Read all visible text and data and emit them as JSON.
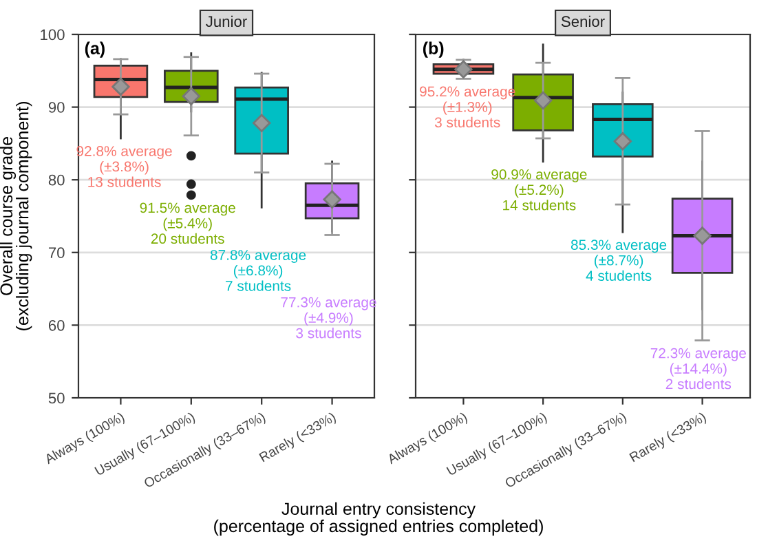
{
  "chart_data": [
    {
      "type": "box",
      "title": "Junior",
      "ylabel": "Overall course grade\n(excluding journal component)",
      "xlabel": "Journal entry consistency\n(percentage of assigned entries completed)",
      "categories": [
        "Always (100%)",
        "Usually (67–100%)",
        "Occasionally (33–67%)",
        "Rarely (<33%)"
      ],
      "ylim": [
        50,
        100
      ],
      "yticks": [
        50,
        60,
        70,
        80,
        90,
        100
      ],
      "grid": "y",
      "series": [
        {
          "colors": [
            "#f8766d",
            "#7cae00",
            "#00bfc4",
            "#c77cff"
          ],
          "boxes": [
            {
              "low": 85.7,
              "q1": 91.4,
              "median": 93.8,
              "q3": 95.7,
              "high": 96.6
            },
            {
              "low": 89.4,
              "q1": 90.7,
              "median": 92.7,
              "q3": 95.0,
              "high": 97.4,
              "outliers": [
                83.3,
                79.4,
                77.9
              ]
            },
            {
              "low": 76.2,
              "q1": 83.6,
              "median": 91.1,
              "q3": 92.7,
              "high": 94.7
            },
            {
              "low": 72.9,
              "q1": 74.7,
              "median": 76.5,
              "q3": 79.5,
              "high": 82.5
            }
          ]
        },
        {
          "type": "scatter",
          "color": "#999999",
          "marker": "diamond",
          "x": [
            "Always (100%)",
            "Usually (67–100%)",
            "Occasionally (33–67%)",
            "Rarely (<33%)"
          ],
          "values": [
            92.8,
            91.5,
            87.8,
            77.3
          ],
          "errors": [
            3.8,
            5.4,
            6.8,
            4.9
          ]
        }
      ],
      "annotations": [
        "(a)",
        "92.8% average\n(±3.8%)\n13 students",
        "91.5% average\n(±5.4%)\n20 students",
        "87.8% average\n(±6.8%)\n7 students",
        "77.3% average\n(±4.9%)\n3 students"
      ]
    },
    {
      "type": "box",
      "title": "Senior",
      "tick_labels": "x",
      "categories": [
        "Always (100%)",
        "Usually (67–100%)",
        "Occasionally (33–67%)",
        "Rarely (<33%)"
      ],
      "ylim": [
        50,
        100
      ],
      "yticks": [
        50,
        60,
        70,
        80,
        90,
        100
      ],
      "grid": "y",
      "series": [
        {
          "colors": [
            "#f8766d",
            "#7cae00",
            "#00bfc4",
            "#c77cff"
          ],
          "boxes": [
            {
              "low": 94.4,
              "q1": 94.6,
              "median": 95.2,
              "q3": 95.9,
              "high": 96.5
            },
            {
              "low": 82.5,
              "q1": 86.8,
              "median": 91.3,
              "q3": 94.5,
              "high": 98.6
            },
            {
              "low": 72.8,
              "q1": 83.2,
              "median": 88.3,
              "q3": 90.4,
              "high": 92.0
            },
            {
              "low": 62.2,
              "q1": 67.2,
              "median": 72.3,
              "q3": 77.4,
              "high": 82.5
            }
          ]
        },
        {
          "type": "scatter",
          "color": "#999999",
          "marker": "diamond",
          "x": [
            "Always (100%)",
            "Usually (67–100%)",
            "Occasionally (33–67%)",
            "Rarely (<33%)"
          ],
          "values": [
            95.2,
            90.9,
            85.3,
            72.3
          ],
          "errors": [
            1.3,
            5.2,
            8.7,
            14.4
          ]
        }
      ],
      "annotations": [
        "(b)",
        "95.2% average\n(±1.3%)\n3 students",
        "90.9% average\n(±5.2%)\n14 students",
        "85.3% average\n(±8.7%)\n4 students",
        "72.3% average\n(±14.4%)\n2 students"
      ]
    }
  ]
}
